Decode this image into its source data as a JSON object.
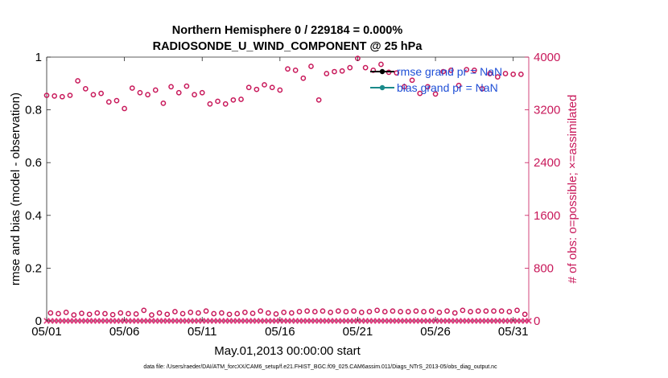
{
  "chart_data": {
    "type": "scatter",
    "title_line1": "Northern Hemisphere 0 / 229184 = 0.000%",
    "title_line2": "RADIOSONDE_U_WIND_COMPONENT @ 25 hPa",
    "xlabel": "May.01,2013 00:00:00 start",
    "ylabel_left": "rmse and bias (model - observation)",
    "ylabel_right": "# of obs: o=possible; ×=assimilated",
    "x_ticks": [
      "05/01",
      "05/06",
      "05/11",
      "05/16",
      "05/21",
      "05/26",
      "05/31"
    ],
    "x_tick_days": [
      0,
      5,
      10,
      15,
      20,
      25,
      30
    ],
    "xlim": [
      0,
      31
    ],
    "ylim_left": [
      0,
      1
    ],
    "y_ticks_left": [
      "0",
      "0.2",
      "0.4",
      "0.6",
      "0.8",
      "1"
    ],
    "y_tick_values_left": [
      0,
      0.2,
      0.4,
      0.6,
      0.8,
      1
    ],
    "ylim_right": [
      0,
      4000
    ],
    "y_ticks_right": [
      "0",
      "800",
      "1600",
      "2400",
      "3200",
      "4000"
    ],
    "y_tick_values_right": [
      0,
      800,
      1600,
      2400,
      3200,
      4000
    ],
    "legend": [
      {
        "label": "rmse grand pr = NaN",
        "color": "#000000"
      },
      {
        "label": "bias grand pr = NaN",
        "color": "#1a8a8a"
      }
    ],
    "series": [
      {
        "name": "possible obs (00Z/12Z large)",
        "marker": "circle",
        "color": "#c8185a",
        "x": [
          0,
          0.5,
          1,
          1.5,
          2,
          2.5,
          3,
          3.5,
          4,
          4.5,
          5,
          5.5,
          6,
          6.5,
          7,
          7.5,
          8,
          8.5,
          9,
          9.5,
          10,
          10.5,
          11,
          11.5,
          12,
          12.5,
          13,
          13.5,
          14,
          14.5,
          15,
          15.5,
          16,
          16.5,
          17,
          17.5,
          18,
          18.5,
          19,
          19.5,
          20,
          20.5,
          21,
          21.5,
          22,
          22.5,
          23,
          23.5,
          24,
          24.5,
          25,
          25.5,
          26,
          26.5,
          27,
          27.5,
          28,
          28.5,
          29,
          29.5,
          30,
          30.5
        ],
        "y": [
          3420,
          3410,
          3400,
          3420,
          3640,
          3520,
          3430,
          3450,
          3320,
          3340,
          3220,
          3530,
          3460,
          3430,
          3500,
          3300,
          3550,
          3460,
          3560,
          3430,
          3460,
          3290,
          3330,
          3290,
          3350,
          3360,
          3540,
          3510,
          3580,
          3540,
          3500,
          3820,
          3800,
          3680,
          3860,
          3350,
          3750,
          3780,
          3790,
          3840,
          3980,
          3840,
          3800,
          3890,
          3770,
          3760,
          3550,
          3650,
          3450,
          3550,
          3440,
          3780,
          3800,
          3570,
          3810,
          3800,
          3520,
          3750,
          3700,
          3750,
          3740,
          3740
        ]
      },
      {
        "name": "possible obs (06Z/18Z small)",
        "marker": "circle",
        "color": "#c8185a",
        "x": [
          0.25,
          0.75,
          1.25,
          1.75,
          2.25,
          2.75,
          3.25,
          3.75,
          4.25,
          4.75,
          5.25,
          5.75,
          6.25,
          6.75,
          7.25,
          7.75,
          8.25,
          8.75,
          9.25,
          9.75,
          10.25,
          10.75,
          11.25,
          11.75,
          12.25,
          12.75,
          13.25,
          13.75,
          14.25,
          14.75,
          15.25,
          15.75,
          16.25,
          16.75,
          17.25,
          17.75,
          18.25,
          18.75,
          19.25,
          19.75,
          20.25,
          20.75,
          21.25,
          21.75,
          22.25,
          22.75,
          23.25,
          23.75,
          24.25,
          24.75,
          25.25,
          25.75,
          26.25,
          26.75,
          27.25,
          27.75,
          28.25,
          28.75,
          29.25,
          29.75,
          30.25,
          30.75
        ],
        "y": [
          120,
          110,
          130,
          90,
          115,
          100,
          120,
          110,
          95,
          120,
          110,
          105,
          160,
          90,
          120,
          100,
          140,
          110,
          130,
          120,
          150,
          110,
          120,
          100,
          110,
          130,
          115,
          150,
          120,
          105,
          130,
          120,
          140,
          150,
          140,
          150,
          130,
          150,
          140,
          150,
          130,
          140,
          160,
          140,
          150,
          140,
          140,
          150,
          140,
          150,
          130,
          150,
          120,
          160,
          140,
          150,
          150,
          150,
          150,
          140,
          160,
          100
        ]
      },
      {
        "name": "assimilated obs",
        "marker": "x",
        "color": "#e0357a",
        "x": [
          0,
          0.25,
          0.5,
          0.75,
          1,
          1.25,
          1.5,
          1.75,
          2,
          2.25,
          2.5,
          2.75,
          3,
          3.25,
          3.5,
          3.75,
          4,
          4.25,
          4.5,
          4.75,
          5,
          5.25,
          5.5,
          5.75,
          6,
          6.25,
          6.5,
          6.75,
          7,
          7.25,
          7.5,
          7.75,
          8,
          8.25,
          8.5,
          8.75,
          9,
          9.25,
          9.5,
          9.75,
          10,
          10.25,
          10.5,
          10.75,
          11,
          11.25,
          11.5,
          11.75,
          12,
          12.25,
          12.5,
          12.75,
          13,
          13.25,
          13.5,
          13.75,
          14,
          14.25,
          14.5,
          14.75,
          15,
          15.25,
          15.5,
          15.75,
          16,
          16.25,
          16.5,
          16.75,
          17,
          17.25,
          17.5,
          17.75,
          18,
          18.25,
          18.5,
          18.75,
          19,
          19.25,
          19.5,
          19.75,
          20,
          20.25,
          20.5,
          20.75,
          21,
          21.25,
          21.5,
          21.75,
          22,
          22.25,
          22.5,
          22.75,
          23,
          23.25,
          23.5,
          23.75,
          24,
          24.25,
          24.5,
          24.75,
          25,
          25.25,
          25.5,
          25.75,
          26,
          26.25,
          26.5,
          26.75,
          27,
          27.25,
          27.5,
          27.75,
          28,
          28.25,
          28.5,
          28.75,
          29,
          29.25,
          29.5,
          29.75,
          30,
          30.25,
          30.5,
          30.75,
          31
        ],
        "y": [
          0,
          0,
          0,
          0,
          0,
          0,
          0,
          0,
          0,
          0,
          0,
          0,
          0,
          0,
          0,
          0,
          0,
          0,
          0,
          0,
          0,
          0,
          0,
          0,
          0,
          0,
          0,
          0,
          0,
          0,
          0,
          0,
          0,
          0,
          0,
          0,
          0,
          0,
          0,
          0,
          0,
          0,
          0,
          0,
          0,
          0,
          0,
          0,
          0,
          0,
          0,
          0,
          0,
          0,
          0,
          0,
          0,
          0,
          0,
          0,
          0,
          0,
          0,
          0,
          0,
          0,
          0,
          0,
          0,
          0,
          0,
          0,
          0,
          0,
          0,
          0,
          0,
          0,
          0,
          0,
          0,
          0,
          0,
          0,
          0,
          0,
          0,
          0,
          0,
          0,
          0,
          0,
          0,
          0,
          0,
          0,
          0,
          0,
          0,
          0,
          0,
          0,
          0,
          0,
          0,
          0,
          0,
          0,
          0,
          0,
          0,
          0,
          0,
          0,
          0,
          0,
          0,
          0,
          0,
          0,
          0,
          0,
          0,
          0,
          0
        ]
      }
    ],
    "colors": {
      "axis_left": "#000000",
      "axis_right": "#c8185a",
      "marker": "#c8185a",
      "legend_text": "#1f4fd6",
      "rmse_line": "#000000",
      "bias_line": "#1a8a8a"
    }
  },
  "footer": "data file: /Users/raeder/DAI/ATM_forcXX/CAM6_setup/f.e21.FHIST_BGC.f09_025.CAM6assim.011/Diags_NTrS_2013-05/obs_diag_output.nc"
}
